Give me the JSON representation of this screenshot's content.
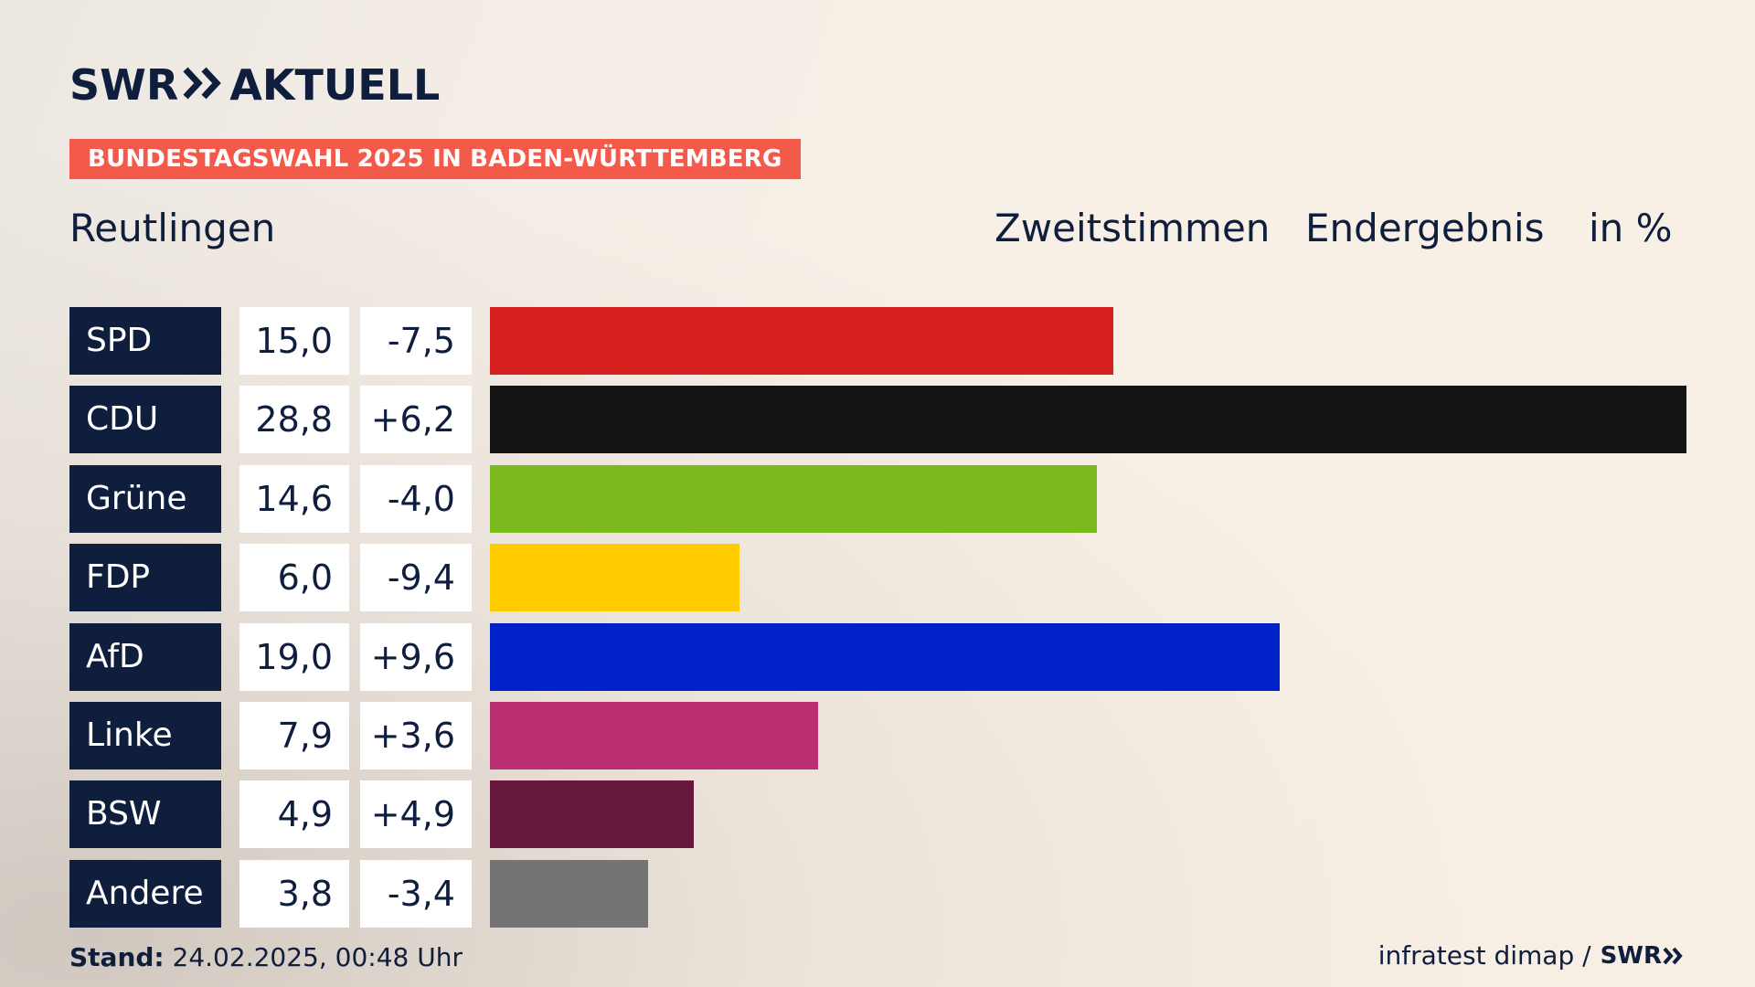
{
  "brand": {
    "logo_left": "SWR",
    "logo_right": "AKTUELL"
  },
  "banner": "BUNDESTAGSWAHL 2025 IN BADEN-WÜRTTEMBERG",
  "region": "Reutlingen",
  "headers": {
    "vote_type": "Zweitstimmen",
    "status": "Endergebnis",
    "unit": "in %"
  },
  "chart_data": {
    "type": "bar",
    "orientation": "horizontal",
    "categories": [
      "SPD",
      "CDU",
      "Grüne",
      "FDP",
      "AfD",
      "Linke",
      "BSW",
      "Andere"
    ],
    "values": [
      15.0,
      28.8,
      14.6,
      6.0,
      19.0,
      7.9,
      4.9,
      3.8
    ],
    "value_labels": [
      "15,0",
      "28,8",
      "14,6",
      "6,0",
      "19,0",
      "7,9",
      "4,9",
      "3,8"
    ],
    "change_labels": [
      "-7,5",
      "+6,2",
      "-4,0",
      "-9,4",
      "+9,6",
      "+3,6",
      "+4,9",
      "-3,4"
    ],
    "changes": [
      -7.5,
      6.2,
      -4.0,
      -9.4,
      9.6,
      3.6,
      4.9,
      -3.4
    ],
    "colors": [
      "#d61f1f",
      "#141414",
      "#7aba1c",
      "#ffcc00",
      "#0021c7",
      "#bb3073",
      "#66183d",
      "#747474"
    ],
    "xlim": [
      0,
      28.8
    ],
    "grid": false
  },
  "footer": {
    "stand_label": "Stand:",
    "stand_value": "24.02.2025, 00:48 Uhr",
    "source": "infratest dimap /",
    "source_logo": "SWR"
  }
}
